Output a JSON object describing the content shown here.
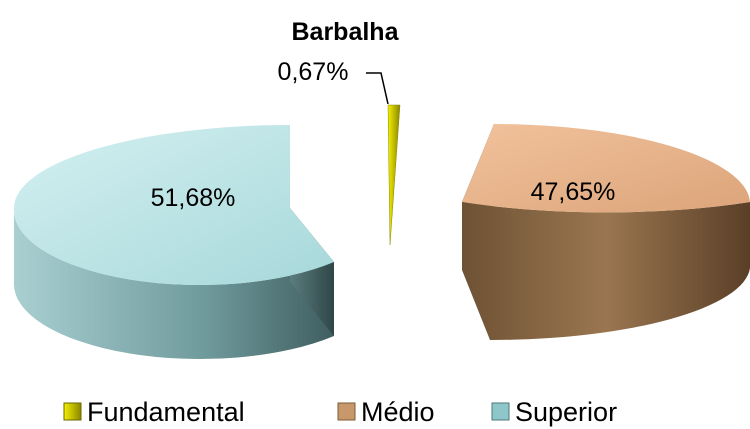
{
  "chart_data": {
    "type": "pie",
    "title": "Barbalha",
    "categories": [
      "Fundamental",
      "Médio",
      "Superior"
    ],
    "values": [
      0.67,
      47.65,
      51.68
    ],
    "labels": [
      "0,67%",
      "47,65%",
      "51,68%"
    ],
    "colors": [
      "#c8c400",
      "#c9986a",
      "#8fc6c9"
    ],
    "legend_position": "bottom",
    "exploded": true
  }
}
